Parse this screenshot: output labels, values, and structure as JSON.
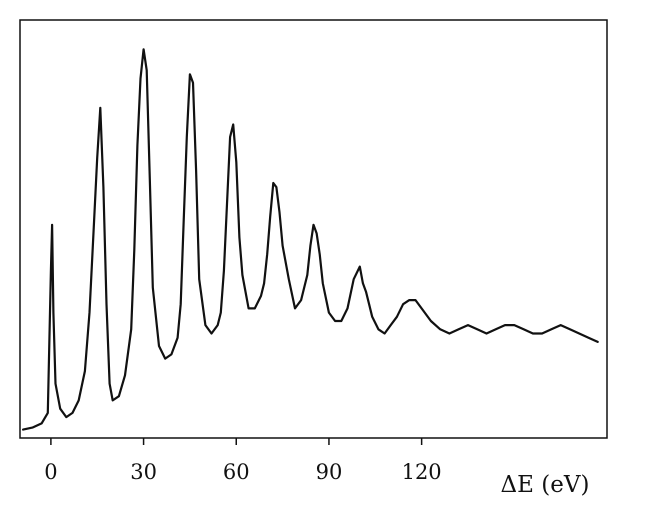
{
  "chart_data": {
    "type": "line",
    "title": "",
    "xlabel": "ΔE (eV)",
    "ylabel": "",
    "xlim": [
      -10,
      180
    ],
    "ylim": [
      0,
      100
    ],
    "grid": false,
    "legend": "none",
    "x_ticks": [
      0,
      30,
      60,
      90,
      120
    ],
    "x_tick_labels": [
      "0",
      "30",
      "60",
      "90",
      "120"
    ],
    "line_color": "#111111",
    "series": [
      {
        "x": [
          -9,
          -6,
          -3,
          -1,
          0,
          0.4,
          0.8,
          1.5,
          3,
          5,
          7,
          9,
          11,
          12.5,
          14,
          15,
          16,
          17,
          18,
          19,
          20,
          22,
          24,
          26,
          27,
          28,
          29,
          30,
          31,
          32,
          33,
          35,
          37,
          39,
          41,
          42,
          43,
          44,
          45,
          46,
          47,
          48,
          50,
          52,
          54,
          55,
          56,
          57,
          58,
          59,
          60,
          61,
          62,
          64,
          66,
          68,
          69,
          70,
          71,
          72,
          73,
          74,
          75,
          77,
          79,
          81,
          83,
          84,
          85,
          86,
          87,
          88,
          90,
          92,
          94,
          96,
          98,
          100,
          101,
          102,
          103,
          104,
          106,
          108,
          110,
          112,
          114,
          116,
          118,
          120,
          123,
          126,
          129,
          132,
          135,
          138,
          141,
          144,
          147,
          150,
          153,
          156,
          159,
          162,
          165,
          168,
          171,
          174,
          177
        ],
        "y": [
          2,
          2.5,
          3.5,
          6,
          40,
          51,
          30,
          13,
          7,
          5,
          6,
          9,
          16,
          30,
          52,
          67,
          79,
          60,
          32,
          13,
          9,
          10,
          15,
          26,
          45,
          70,
          86,
          93,
          88,
          62,
          36,
          22,
          19,
          20,
          24,
          32,
          52,
          72,
          87,
          85,
          64,
          38,
          27,
          25,
          27,
          30,
          40,
          56,
          72,
          75,
          66,
          48,
          39,
          31,
          31,
          34,
          37,
          44,
          53,
          61,
          60,
          54,
          46,
          38,
          31,
          33,
          39,
          46,
          51,
          49,
          44,
          37,
          30,
          28,
          28,
          31,
          38,
          41,
          37,
          35,
          32,
          29,
          26,
          25,
          27,
          29,
          32,
          33,
          33,
          31,
          28,
          26,
          25,
          26,
          27,
          26,
          25,
          26,
          27,
          27,
          26,
          25,
          25,
          26,
          27,
          26,
          25,
          24,
          23
        ]
      }
    ]
  }
}
